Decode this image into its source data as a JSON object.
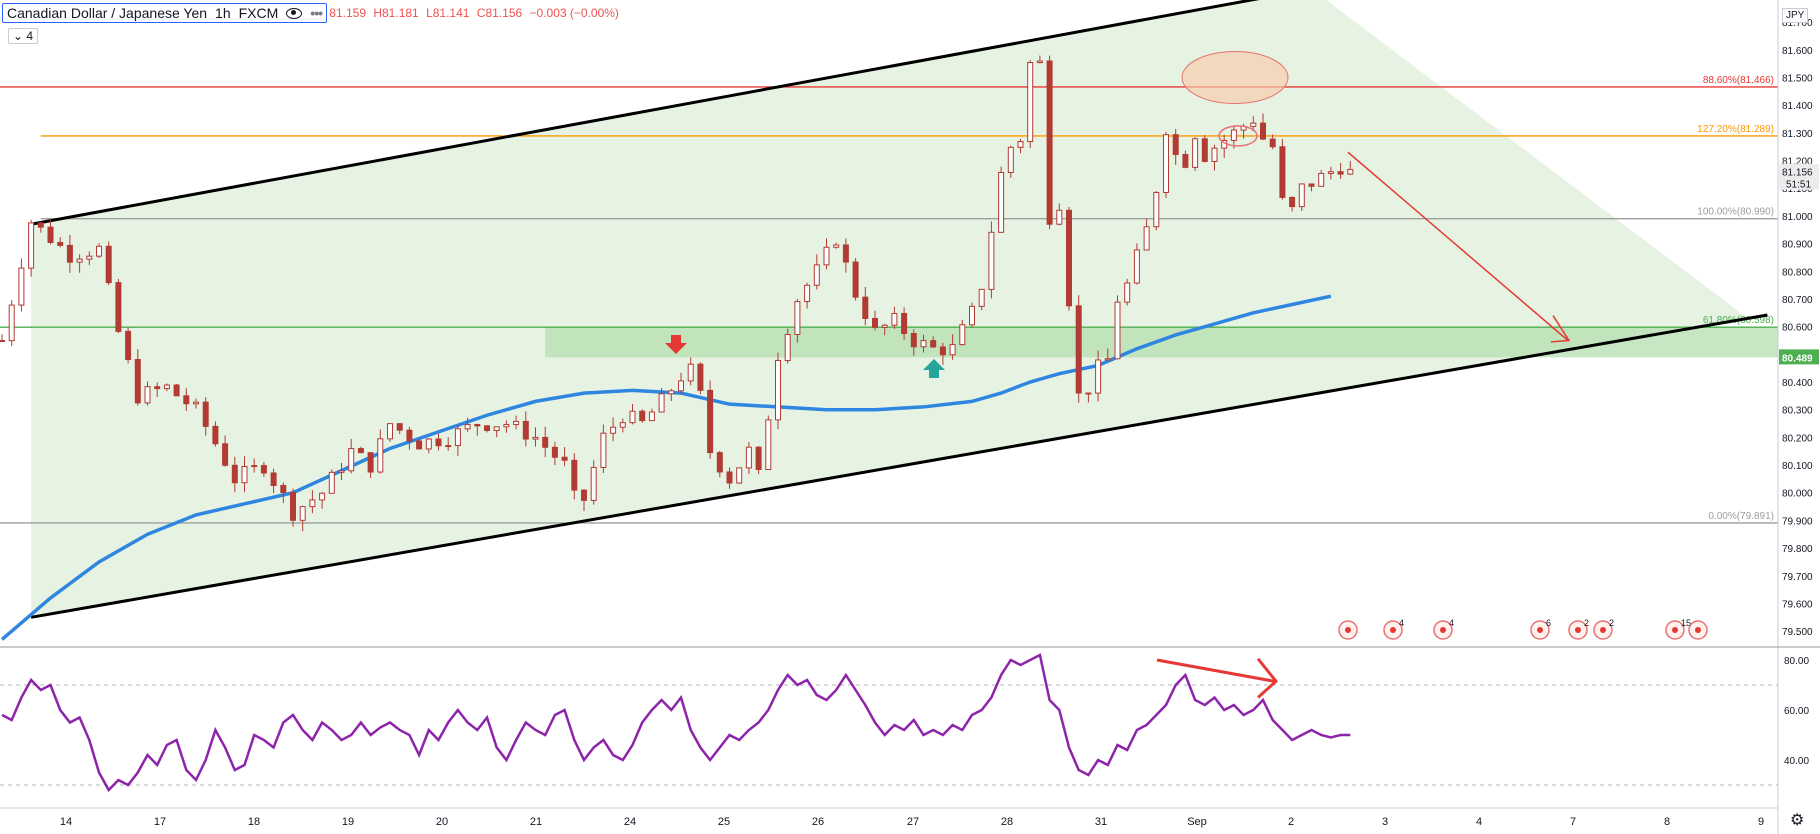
{
  "header": {
    "symbol": "Canadian Dollar / Japanese Yen",
    "interval": "1h",
    "exchange": "FXCM",
    "open": "81.159",
    "high": "H81.181",
    "low": "L81.141",
    "close": "C81.156",
    "change": "−0.003 (−0.00%)",
    "study_count": "4",
    "unit": "JPY"
  },
  "colors": {
    "channel_fill": "#e7f3e2",
    "channel_line": "#000000",
    "support_zone": "#b9e0b4",
    "fib_886": "#e53935",
    "fib_1272": "#ff9800",
    "fib_grey": "#9e9e9e",
    "fib_618": "#4caf50",
    "ma": "#2f86e0",
    "candle": "#b23b34",
    "rsi": "#8e24aa",
    "arrow": "#e53935",
    "ellipse_fill": "#f7c9a8",
    "ellipse_stroke": "#e57373",
    "marker_down": "#e53935",
    "marker_up": "#26a69a"
  },
  "chart_data": [
    {
      "type": "candlestick",
      "ylim": [
        79.45,
        81.78
      ],
      "ytick_labels": [
        "81.700",
        "81.600",
        "81.500",
        "81.400",
        "81.300",
        "81.200",
        "81.100",
        "81.000",
        "80.900",
        "80.800",
        "80.700",
        "80.600",
        "80.500",
        "80.400",
        "80.300",
        "80.200",
        "80.100",
        "80.000",
        "79.900",
        "79.800",
        "79.700",
        "79.600",
        "79.500"
      ],
      "xtick_labels": [
        "14",
        "17",
        "18",
        "19",
        "20",
        "21",
        "24",
        "25",
        "26",
        "27",
        "28",
        "31",
        "Sep",
        "2",
        "3",
        "4",
        "7",
        "8",
        "9"
      ],
      "price_path": [
        [
          0,
          80.55
        ],
        [
          3,
          80.98
        ],
        [
          7,
          80.86
        ],
        [
          10,
          80.88
        ],
        [
          12,
          80.58
        ],
        [
          14,
          80.35
        ],
        [
          17,
          80.38
        ],
        [
          20,
          80.3
        ],
        [
          22,
          80.18
        ],
        [
          24,
          80.05
        ],
        [
          27,
          80.1
        ],
        [
          30,
          79.93
        ],
        [
          33,
          80.0
        ],
        [
          36,
          80.15
        ],
        [
          38,
          80.1
        ],
        [
          40,
          80.25
        ],
        [
          43,
          80.18
        ],
        [
          46,
          80.2
        ],
        [
          49,
          80.25
        ],
        [
          52,
          80.25
        ],
        [
          55,
          80.2
        ],
        [
          58,
          80.1
        ],
        [
          59.5,
          79.92
        ],
        [
          62,
          80.2
        ],
        [
          64,
          80.28
        ],
        [
          66,
          80.25
        ],
        [
          68,
          80.33
        ],
        [
          70,
          80.42
        ],
        [
          71.5,
          80.45
        ],
        [
          73,
          80.15
        ],
        [
          75,
          80.05
        ],
        [
          77,
          80.15
        ],
        [
          78,
          80.06
        ],
        [
          80,
          80.5
        ],
        [
          82,
          80.7
        ],
        [
          84,
          80.8
        ],
        [
          86,
          80.92
        ],
        [
          88,
          80.72
        ],
        [
          90,
          80.58
        ],
        [
          92,
          80.62
        ],
        [
          94,
          80.55
        ],
        [
          96,
          80.52
        ],
        [
          98,
          80.52
        ],
        [
          100,
          80.65
        ],
        [
          101,
          80.75
        ],
        [
          103,
          81.15
        ],
        [
          104,
          81.25
        ],
        [
          105,
          81.28
        ],
        [
          106,
          81.55
        ],
        [
          107,
          81.55
        ],
        [
          108,
          81.0
        ],
        [
          109,
          81.05
        ],
        [
          110,
          80.7
        ],
        [
          111,
          80.35
        ],
        [
          112,
          80.38
        ],
        [
          113,
          80.45
        ],
        [
          114,
          80.48
        ],
        [
          115,
          80.7
        ],
        [
          116,
          80.75
        ],
        [
          118,
          80.95
        ],
        [
          119,
          81.1
        ],
        [
          120,
          81.32
        ],
        [
          121,
          81.22
        ],
        [
          122,
          81.2
        ],
        [
          123,
          81.3
        ],
        [
          124,
          81.22
        ],
        [
          125,
          81.25
        ],
        [
          127,
          81.3
        ],
        [
          129,
          81.35
        ],
        [
          130,
          81.28
        ],
        [
          131,
          81.25
        ],
        [
          132,
          81.05
        ],
        [
          133,
          81.02
        ],
        [
          134,
          81.1
        ],
        [
          135,
          81.12
        ],
        [
          137,
          81.16
        ],
        [
          138,
          81.18
        ],
        [
          139,
          81.156
        ]
      ],
      "price_readout": "81.156",
      "countdown": "51:51",
      "support_level_label": "80.489"
    },
    {
      "type": "fibonacci",
      "levels": [
        {
          "label": "88.60%(81.466)",
          "value": 81.466,
          "color": "#e53935"
        },
        {
          "label": "127.20%(81.289)",
          "value": 81.289,
          "color": "#ff9800"
        },
        {
          "label": "100.00%(80.990)",
          "value": 80.99,
          "color": "#9e9e9e"
        },
        {
          "label": "61.80%(80.598)",
          "value": 80.598,
          "color": "#4caf50"
        },
        {
          "label": "0.00%(79.891)",
          "value": 79.891,
          "color": "#9e9e9e"
        }
      ],
      "support_zone": [
        80.489,
        80.598
      ]
    },
    {
      "type": "line",
      "name": "",
      "series": [
        [
          0,
          79.47
        ],
        [
          5,
          79.62
        ],
        [
          10,
          79.75
        ],
        [
          15,
          79.85
        ],
        [
          20,
          79.92
        ],
        [
          25,
          79.96
        ],
        [
          30,
          80.0
        ],
        [
          35,
          80.08
        ],
        [
          40,
          80.16
        ],
        [
          45,
          80.22
        ],
        [
          50,
          80.28
        ],
        [
          55,
          80.33
        ],
        [
          60,
          80.36
        ],
        [
          65,
          80.37
        ],
        [
          70,
          80.36
        ],
        [
          75,
          80.32
        ],
        [
          80,
          80.31
        ],
        [
          85,
          80.3
        ],
        [
          90,
          80.3
        ],
        [
          95,
          80.31
        ],
        [
          100,
          80.33
        ],
        [
          103,
          80.36
        ],
        [
          106,
          80.4
        ],
        [
          109,
          80.43
        ],
        [
          113,
          80.46
        ],
        [
          117,
          80.52
        ],
        [
          121,
          80.57
        ],
        [
          125,
          80.61
        ],
        [
          129,
          80.65
        ],
        [
          133,
          80.68
        ],
        [
          137,
          80.71
        ]
      ]
    },
    {
      "type": "line",
      "name": "RSI",
      "ylim": [
        22,
        84
      ],
      "ytick_labels": [
        "80.00",
        "60.00",
        "40.00"
      ],
      "values": [
        [
          0,
          58
        ],
        [
          1,
          56
        ],
        [
          2,
          65
        ],
        [
          3,
          72
        ],
        [
          4,
          68
        ],
        [
          5,
          70
        ],
        [
          6,
          60
        ],
        [
          7,
          55
        ],
        [
          8,
          57
        ],
        [
          9,
          48
        ],
        [
          10,
          35
        ],
        [
          11,
          28
        ],
        [
          12,
          32
        ],
        [
          13,
          30
        ],
        [
          14,
          35
        ],
        [
          15,
          42
        ],
        [
          16,
          38
        ],
        [
          17,
          46
        ],
        [
          18,
          48
        ],
        [
          19,
          36
        ],
        [
          20,
          32
        ],
        [
          21,
          40
        ],
        [
          22,
          52
        ],
        [
          23,
          45
        ],
        [
          24,
          36
        ],
        [
          25,
          38
        ],
        [
          26,
          50
        ],
        [
          27,
          48
        ],
        [
          28,
          45
        ],
        [
          29,
          55
        ],
        [
          30,
          58
        ],
        [
          31,
          52
        ],
        [
          32,
          48
        ],
        [
          33,
          55
        ],
        [
          34,
          52
        ],
        [
          35,
          48
        ],
        [
          36,
          50
        ],
        [
          37,
          55
        ],
        [
          38,
          50
        ],
        [
          39,
          53
        ],
        [
          40,
          55
        ],
        [
          41,
          52
        ],
        [
          42,
          50
        ],
        [
          43,
          42
        ],
        [
          44,
          52
        ],
        [
          45,
          48
        ],
        [
          46,
          55
        ],
        [
          47,
          60
        ],
        [
          48,
          55
        ],
        [
          49,
          52
        ],
        [
          50,
          57
        ],
        [
          51,
          45
        ],
        [
          52,
          40
        ],
        [
          53,
          48
        ],
        [
          54,
          55
        ],
        [
          55,
          52
        ],
        [
          56,
          50
        ],
        [
          57,
          58
        ],
        [
          58,
          60
        ],
        [
          59,
          48
        ],
        [
          60,
          40
        ],
        [
          61,
          45
        ],
        [
          62,
          48
        ],
        [
          63,
          42
        ],
        [
          64,
          40
        ],
        [
          65,
          46
        ],
        [
          66,
          55
        ],
        [
          67,
          60
        ],
        [
          68,
          64
        ],
        [
          69,
          60
        ],
        [
          70,
          65
        ],
        [
          71,
          52
        ],
        [
          72,
          45
        ],
        [
          73,
          40
        ],
        [
          74,
          45
        ],
        [
          75,
          50
        ],
        [
          76,
          48
        ],
        [
          77,
          52
        ],
        [
          78,
          55
        ],
        [
          79,
          60
        ],
        [
          80,
          68
        ],
        [
          81,
          74
        ],
        [
          82,
          70
        ],
        [
          83,
          72
        ],
        [
          84,
          66
        ],
        [
          85,
          64
        ],
        [
          86,
          68
        ],
        [
          87,
          74
        ],
        [
          88,
          68
        ],
        [
          89,
          62
        ],
        [
          90,
          55
        ],
        [
          91,
          50
        ],
        [
          92,
          54
        ],
        [
          93,
          52
        ],
        [
          94,
          56
        ],
        [
          95,
          50
        ],
        [
          96,
          52
        ],
        [
          97,
          50
        ],
        [
          98,
          54
        ],
        [
          99,
          52
        ],
        [
          100,
          58
        ],
        [
          101,
          60
        ],
        [
          102,
          65
        ],
        [
          103,
          74
        ],
        [
          104,
          80
        ],
        [
          105,
          78
        ],
        [
          106,
          80
        ],
        [
          107,
          82
        ],
        [
          108,
          64
        ],
        [
          109,
          60
        ],
        [
          110,
          45
        ],
        [
          111,
          36
        ],
        [
          112,
          34
        ],
        [
          113,
          40
        ],
        [
          114,
          38
        ],
        [
          115,
          46
        ],
        [
          116,
          44
        ],
        [
          117,
          52
        ],
        [
          118,
          54
        ],
        [
          119,
          58
        ],
        [
          120,
          62
        ],
        [
          121,
          70
        ],
        [
          122,
          74
        ],
        [
          123,
          64
        ],
        [
          124,
          62
        ],
        [
          125,
          65
        ],
        [
          126,
          60
        ],
        [
          127,
          62
        ],
        [
          128,
          58
        ],
        [
          129,
          60
        ],
        [
          130,
          64
        ],
        [
          131,
          56
        ],
        [
          132,
          52
        ],
        [
          133,
          48
        ],
        [
          134,
          50
        ],
        [
          135,
          52
        ],
        [
          136,
          50
        ],
        [
          137,
          49
        ],
        [
          138,
          50
        ],
        [
          139,
          50
        ]
      ]
    }
  ],
  "event_markers": [
    "",
    "4",
    "4",
    "6",
    "2",
    "2",
    "15",
    ""
  ]
}
